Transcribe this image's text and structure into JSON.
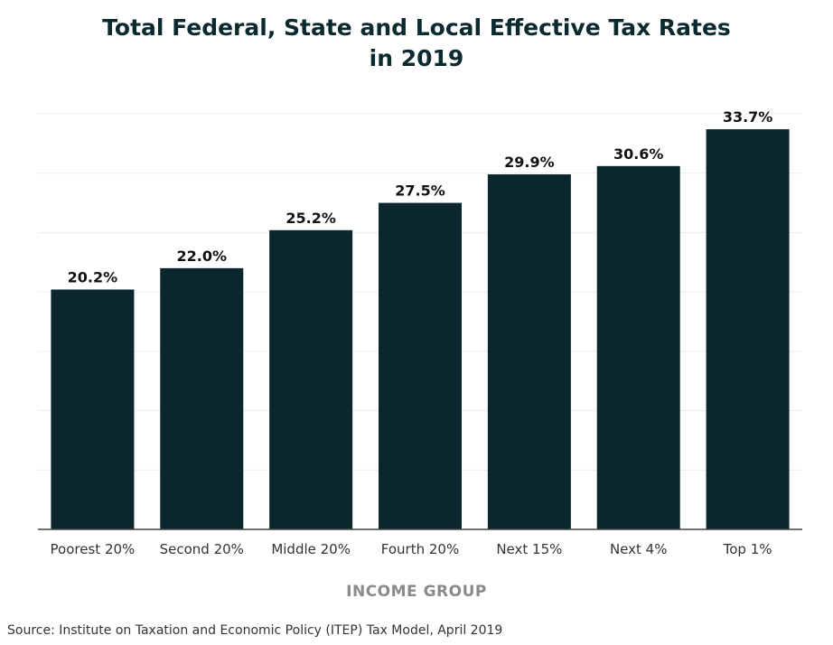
{
  "chart_data": {
    "type": "bar",
    "title": "Total Federal, State and Local Effective Tax Rates in 2019",
    "title_lines": [
      "Total Federal, State and Local Effective Tax Rates",
      "in 2019"
    ],
    "categories": [
      "Poorest 20%",
      "Second 20%",
      "Middle 20%",
      "Fourth 20%",
      "Next 15%",
      "Next 4%",
      "Top 1%"
    ],
    "values": [
      20.2,
      22.0,
      25.2,
      27.5,
      29.9,
      30.6,
      33.7
    ],
    "data_labels": [
      "20.2%",
      "22.0%",
      "25.2%",
      "27.5%",
      "29.9%",
      "30.6%",
      "33.7%"
    ],
    "xlabel": "INCOME GROUP",
    "ylabel": "",
    "ylim": [
      0,
      35
    ],
    "grid": true,
    "y_axis_tick_labels_shown": false,
    "bar_color": "#0b262c",
    "source": "Source: Institute on Taxation and Economic Policy (ITEP) Tax Model, April 2019"
  }
}
